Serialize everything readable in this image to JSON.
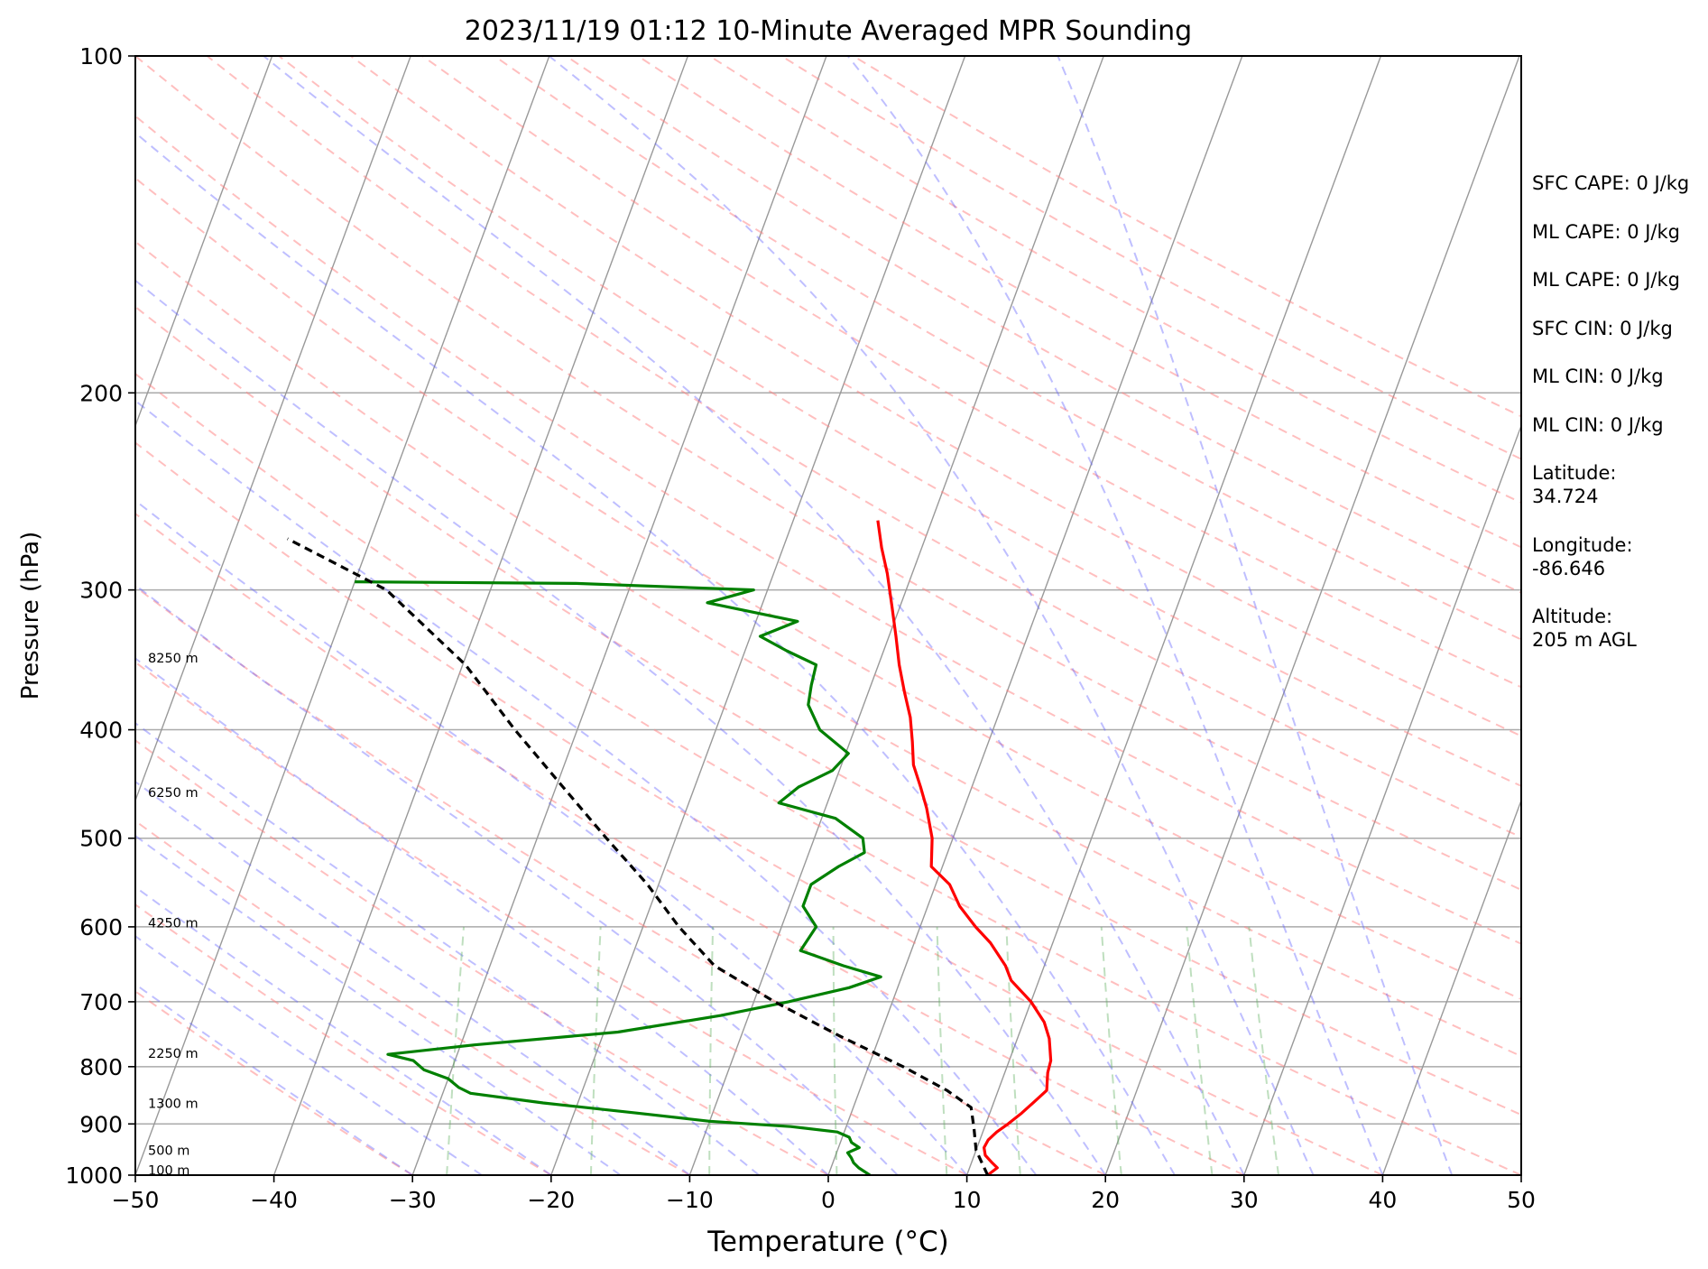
{
  "chart_data": {
    "type": "line",
    "subtype": "skew-t log-p sounding",
    "title": "2023/11/19 01:12 10-Minute Averaged MPR Sounding",
    "xlabel": "Temperature (°C)",
    "ylabel": "Pressure (hPa)",
    "xlim": [
      -50,
      50
    ],
    "ylim": [
      1000,
      100
    ],
    "y_scale": "log",
    "grid": true,
    "x_ticks": [
      "−50",
      "−40",
      "−30",
      "−20",
      "−10",
      "0",
      "10",
      "20",
      "30",
      "40",
      "50"
    ],
    "y_ticks": [
      "100",
      "200",
      "300",
      "400",
      "500",
      "600",
      "700",
      "800",
      "900",
      "1000"
    ],
    "height_labels": [
      {
        "text": "8250 m",
        "pressure": 345
      },
      {
        "text": "6250 m",
        "pressure": 455
      },
      {
        "text": "4250 m",
        "pressure": 595
      },
      {
        "text": "2250 m",
        "pressure": 778
      },
      {
        "text": "1300 m",
        "pressure": 863
      },
      {
        "text": "500 m",
        "pressure": 950
      },
      {
        "text": "100 m",
        "pressure": 990
      }
    ],
    "series": [
      {
        "key": "temperature",
        "color": "#ff0000",
        "points": [
          [
            1000,
            11.5
          ],
          [
            985,
            12.0
          ],
          [
            975,
            11.5
          ],
          [
            960,
            10.8
          ],
          [
            945,
            10.5
          ],
          [
            930,
            10.6
          ],
          [
            915,
            11.0
          ],
          [
            900,
            11.6
          ],
          [
            880,
            12.3
          ],
          [
            860,
            12.9
          ],
          [
            840,
            13.5
          ],
          [
            825,
            13.3
          ],
          [
            810,
            13.1
          ],
          [
            790,
            13.0
          ],
          [
            775,
            12.7
          ],
          [
            755,
            12.3
          ],
          [
            730,
            11.5
          ],
          [
            700,
            10.0
          ],
          [
            670,
            8.0
          ],
          [
            650,
            7.2
          ],
          [
            620,
            5.5
          ],
          [
            600,
            4.0
          ],
          [
            575,
            2.3
          ],
          [
            550,
            1.0
          ],
          [
            530,
            -0.8
          ],
          [
            500,
            -1.5
          ],
          [
            470,
            -2.7
          ],
          [
            450,
            -3.7
          ],
          [
            430,
            -4.8
          ],
          [
            410,
            -5.5
          ],
          [
            390,
            -6.3
          ],
          [
            370,
            -7.4
          ],
          [
            350,
            -8.5
          ],
          [
            330,
            -9.5
          ],
          [
            310,
            -10.6
          ],
          [
            290,
            -11.8
          ],
          [
            275,
            -12.9
          ],
          [
            260,
            -13.9
          ]
        ]
      },
      {
        "key": "dewpoint",
        "color": "#008000",
        "points": [
          [
            1000,
            3.0
          ],
          [
            985,
            2.0
          ],
          [
            975,
            1.5
          ],
          [
            965,
            1.2
          ],
          [
            955,
            0.8
          ],
          [
            945,
            1.5
          ],
          [
            935,
            0.8
          ],
          [
            925,
            0.5
          ],
          [
            915,
            -0.5
          ],
          [
            905,
            -4.0
          ],
          [
            895,
            -10.0
          ],
          [
            880,
            -15.5
          ],
          [
            862,
            -22.5
          ],
          [
            845,
            -28.0
          ],
          [
            835,
            -29.0
          ],
          [
            820,
            -30.0
          ],
          [
            805,
            -32.0
          ],
          [
            790,
            -33.0
          ],
          [
            780,
            -35.0
          ],
          [
            765,
            -29.0
          ],
          [
            745,
            -19.0
          ],
          [
            720,
            -12.0
          ],
          [
            700,
            -7.5
          ],
          [
            680,
            -3.5
          ],
          [
            665,
            -1.5
          ],
          [
            650,
            -4.5
          ],
          [
            630,
            -8.0
          ],
          [
            600,
            -7.5
          ],
          [
            575,
            -9.0
          ],
          [
            550,
            -9.0
          ],
          [
            530,
            -7.5
          ],
          [
            515,
            -6.0
          ],
          [
            500,
            -6.5
          ],
          [
            480,
            -9.0
          ],
          [
            465,
            -13.5
          ],
          [
            450,
            -12.5
          ],
          [
            435,
            -10.5
          ],
          [
            420,
            -9.8
          ],
          [
            400,
            -12.5
          ],
          [
            380,
            -14.0
          ],
          [
            365,
            -14.3
          ],
          [
            350,
            -14.5
          ],
          [
            340,
            -17.0
          ],
          [
            330,
            -19.3
          ],
          [
            320,
            -17.0
          ],
          [
            308,
            -24.0
          ],
          [
            300,
            -21.0
          ],
          [
            296,
            -34.0
          ],
          [
            295,
            -50.0
          ]
        ]
      },
      {
        "key": "parcel",
        "color": "#000000",
        "dashed": true,
        "points": [
          [
            1000,
            11.5
          ],
          [
            950,
            10.0
          ],
          [
            910,
            9.3
          ],
          [
            870,
            8.5
          ],
          [
            840,
            6.3
          ],
          [
            800,
            2.5
          ],
          [
            750,
            -3.0
          ],
          [
            700,
            -8.5
          ],
          [
            650,
            -13.8
          ],
          [
            600,
            -17.4
          ],
          [
            550,
            -20.8
          ],
          [
            500,
            -25.0
          ],
          [
            450,
            -29.5
          ],
          [
            400,
            -34.5
          ],
          [
            350,
            -39.8
          ],
          [
            300,
            -47.5
          ],
          [
            270,
            -56.0
          ]
        ]
      }
    ],
    "stats": [
      "SFC CAPE: 0 J/kg",
      "ML CAPE: 0 J/kg",
      "ML CAPE: 0 J/kg",
      "SFC CIN: 0 J/kg",
      "ML CIN: 0 J/kg",
      "ML CIN: 0 J/kg",
      "Latitude:\n34.724",
      "Longitude:\n-86.646",
      "Altitude:\n205 m AGL"
    ],
    "colors": {
      "isotherm": "#999999",
      "dry_adiabat": "#ff8080",
      "moist_adiabat": "#6060ff",
      "mixing_ratio": "#60b060"
    }
  }
}
